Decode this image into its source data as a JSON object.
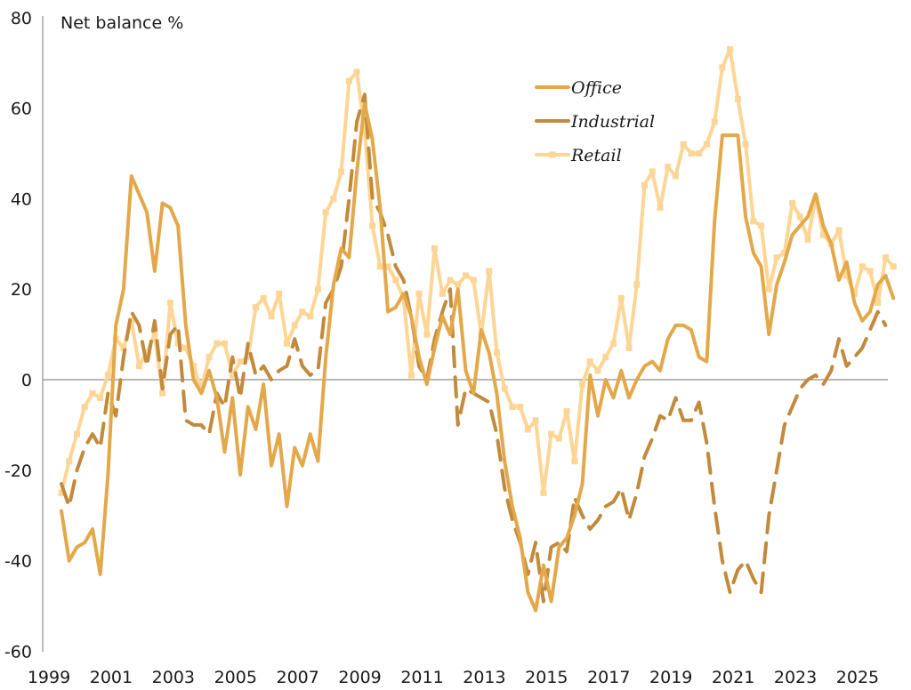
{
  "chart_data": {
    "type": "line",
    "title": "",
    "ylabel": "Net balance %",
    "xlabel": "",
    "ylim": [
      -60,
      80
    ],
    "xlim": [
      1999,
      2025.85
    ],
    "yticks": [
      80,
      60,
      40,
      20,
      0,
      -20,
      -40,
      -60
    ],
    "xticks": [
      1999,
      2001,
      2003,
      2005,
      2007,
      2009,
      2011,
      2013,
      2015,
      2017,
      2019,
      2021,
      2023,
      2025
    ],
    "grid": false,
    "zero_line": true,
    "legend": {
      "position": "top-right"
    },
    "x_start": 1999.0,
    "x_step": 0.25,
    "series": [
      {
        "name": "Office",
        "color": "#E3A84A",
        "style": "solid",
        "values": [
          -29,
          -40,
          -37,
          -36,
          -33,
          -43,
          -21,
          12,
          20,
          45,
          41,
          37,
          24,
          39,
          38,
          34,
          12,
          0,
          -3,
          2,
          -4,
          -16,
          -4,
          -21,
          -6,
          -11,
          -1,
          -19,
          -12,
          -28,
          -15,
          -19,
          -12,
          -18,
          5,
          21,
          29,
          27,
          46,
          61,
          53,
          38,
          15,
          16,
          19,
          14,
          5,
          -1,
          7,
          14,
          10,
          20,
          2,
          -3,
          11,
          6,
          -3,
          -18,
          -28,
          -35,
          -47,
          -51,
          -41,
          -49,
          -37,
          -35,
          -30,
          -23,
          1,
          -8,
          0,
          -4,
          2,
          -4,
          0,
          3,
          4,
          2,
          9,
          12,
          12,
          11,
          5,
          4,
          35,
          54,
          54,
          54,
          36,
          28,
          25,
          10,
          21,
          26,
          32,
          34,
          36,
          41,
          34,
          30,
          22,
          26,
          17,
          13,
          15,
          21,
          23,
          18
        ]
      },
      {
        "name": "Industrial",
        "color": "#C28A3C",
        "style": "dashed",
        "values": [
          -23,
          -28,
          -20,
          -15,
          -12,
          -15,
          -3,
          -8,
          5,
          15,
          12,
          3,
          13,
          -2,
          10,
          12,
          -9,
          -10,
          -10,
          -12,
          -3,
          -6,
          5,
          -4,
          8,
          1,
          3,
          0,
          2,
          3,
          9,
          3,
          1,
          2,
          17,
          20,
          25,
          40,
          57,
          63,
          40,
          37,
          32,
          25,
          22,
          14,
          3,
          0,
          9,
          15,
          20,
          -10,
          -2,
          -3,
          -4,
          -5,
          -12,
          -24,
          -31,
          -36,
          -43,
          -36,
          -49,
          -37,
          -36,
          -38,
          -26,
          -30,
          -33,
          -31,
          -28,
          -27,
          -24,
          -31,
          -25,
          -17,
          -13,
          -8,
          -9,
          -4,
          -9,
          -9,
          -5,
          -14,
          -28,
          -40,
          -47,
          -42,
          -40,
          -44,
          -47,
          -30,
          -20,
          -10,
          -6,
          -2,
          0,
          1,
          -1,
          2,
          9,
          3,
          5,
          7,
          11,
          15,
          12
        ]
      },
      {
        "name": "Retail",
        "color": "#FDD595",
        "style": "solid-markers",
        "values": [
          -25,
          -18,
          -12,
          -6,
          -3,
          -4,
          1,
          9,
          7,
          13,
          3,
          6,
          10,
          -3,
          17,
          8,
          7,
          3,
          -2,
          5,
          8,
          8,
          1,
          4,
          5,
          16,
          18,
          14,
          19,
          8,
          12,
          15,
          14,
          20,
          37,
          40,
          46,
          66,
          68,
          55,
          34,
          25,
          25,
          22,
          18,
          1,
          19,
          10,
          29,
          19,
          22,
          21,
          23,
          22,
          10,
          24,
          6,
          -2,
          -6,
          -6,
          -11,
          -9,
          -25,
          -12,
          -13,
          -7,
          -18,
          -1,
          4,
          2,
          5,
          8,
          18,
          7,
          21,
          43,
          46,
          38,
          47,
          45,
          52,
          50,
          50,
          52,
          57,
          69,
          73,
          62,
          52,
          35,
          34,
          20,
          27,
          28,
          39,
          36,
          31,
          40,
          32,
          30,
          33,
          23,
          19,
          25,
          24,
          17,
          27,
          25
        ]
      }
    ]
  }
}
